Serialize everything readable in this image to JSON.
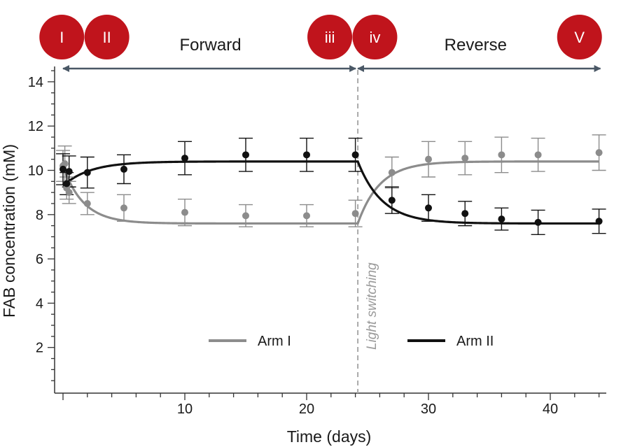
{
  "chart_data": {
    "type": "scatter",
    "xlabel": "Time (days)",
    "ylabel": "FAB concentration (mM)",
    "xlim": [
      -1,
      45
    ],
    "ylim": [
      0,
      14.5
    ],
    "xticks": [
      10,
      20,
      30,
      40
    ],
    "yticks": [
      2,
      4,
      6,
      8,
      10,
      12,
      14
    ],
    "legend_position": "inside-bottom",
    "switch_day": 24.2,
    "annotation": "Light switching",
    "phases": [
      {
        "label": "Forward",
        "from": 0,
        "to": 24.2
      },
      {
        "label": "Reverse",
        "from": 24.2,
        "to": 44
      }
    ],
    "badges": [
      {
        "label": "I",
        "x": -0.1
      },
      {
        "label": "II",
        "x": 3.6
      },
      {
        "label": "iii",
        "x": 21.9
      },
      {
        "label": "iv",
        "x": 25.6
      },
      {
        "label": "V",
        "x": 42.4
      }
    ],
    "colors": {
      "arm1": "#8c8c8c",
      "arm2": "#111111",
      "badge": "#c0141c",
      "arrow": "#4a5866"
    },
    "series": [
      {
        "name": "Arm I",
        "color": "#8c8c8c",
        "points": [
          {
            "x": 0,
            "y": 10.2,
            "err": 0.7
          },
          {
            "x": 0.15,
            "y": 10.3,
            "err": 0.8
          },
          {
            "x": 0.3,
            "y": 9.2,
            "err": 0.5
          },
          {
            "x": 0.5,
            "y": 9.0,
            "err": 0.5
          },
          {
            "x": 2,
            "y": 8.5,
            "err": 0.5
          },
          {
            "x": 5,
            "y": 8.3,
            "err": 0.6
          },
          {
            "x": 10,
            "y": 8.1,
            "err": 0.6
          },
          {
            "x": 15,
            "y": 7.95,
            "err": 0.5
          },
          {
            "x": 20,
            "y": 7.95,
            "err": 0.5
          },
          {
            "x": 24,
            "y": 8.05,
            "err": 0.6
          },
          {
            "x": 27,
            "y": 9.9,
            "err": 0.7
          },
          {
            "x": 30,
            "y": 10.5,
            "err": 0.8
          },
          {
            "x": 33,
            "y": 10.55,
            "err": 0.75
          },
          {
            "x": 36,
            "y": 10.7,
            "err": 0.8
          },
          {
            "x": 39,
            "y": 10.7,
            "err": 0.75
          },
          {
            "x": 44,
            "y": 10.8,
            "err": 0.8
          }
        ],
        "fit": {
          "start": 10.2,
          "plateau1": 7.6,
          "rate1": 0.6,
          "switch": 24.2,
          "plateau2": 10.4,
          "rate2": 0.55
        }
      },
      {
        "name": "Arm II",
        "color": "#111111",
        "points": [
          {
            "x": 0,
            "y": 10.05,
            "err": 0.7
          },
          {
            "x": 0.3,
            "y": 9.4,
            "err": 0.5
          },
          {
            "x": 0.5,
            "y": 9.95,
            "err": 0.7
          },
          {
            "x": 2,
            "y": 9.9,
            "err": 0.7
          },
          {
            "x": 5,
            "y": 10.05,
            "err": 0.65
          },
          {
            "x": 10,
            "y": 10.55,
            "err": 0.75
          },
          {
            "x": 15,
            "y": 10.7,
            "err": 0.75
          },
          {
            "x": 20,
            "y": 10.7,
            "err": 0.75
          },
          {
            "x": 24,
            "y": 10.7,
            "err": 0.75
          },
          {
            "x": 27,
            "y": 8.65,
            "err": 0.6
          },
          {
            "x": 30,
            "y": 8.3,
            "err": 0.6
          },
          {
            "x": 33,
            "y": 8.05,
            "err": 0.55
          },
          {
            "x": 36,
            "y": 7.8,
            "err": 0.5
          },
          {
            "x": 39,
            "y": 7.65,
            "err": 0.55
          },
          {
            "x": 44,
            "y": 7.7,
            "err": 0.55
          }
        ],
        "fit": {
          "start": 9.3,
          "plateau1": 10.4,
          "rate1": 0.45,
          "switch": 24.2,
          "plateau2": 7.6,
          "rate2": 0.5
        }
      }
    ]
  }
}
